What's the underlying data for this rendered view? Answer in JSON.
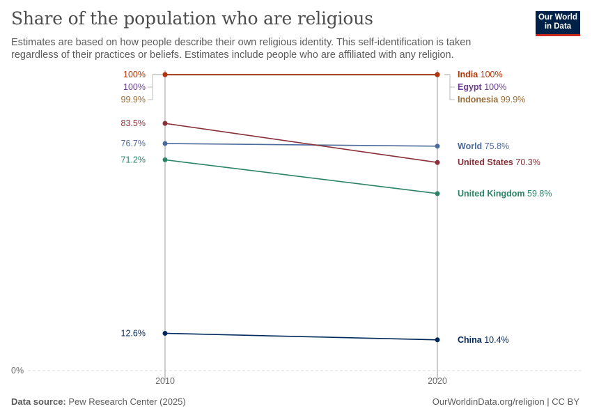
{
  "header": {
    "title": "Share of the population who are religious",
    "subtitle": "Estimates are based on how people describe their own religious identity. This self-identification is taken regardless of their practices or beliefs. Estimates include people who are affiliated with any religion."
  },
  "logo": {
    "line1": "Our World",
    "line2": "in Data"
  },
  "footer": {
    "source_label": "Data source:",
    "source_text": "Pew Research Center (2025)",
    "credit": "OurWorldinData.org/religion | CC BY"
  },
  "chart_data": {
    "type": "line",
    "x": [
      "2010",
      "2020"
    ],
    "ylim": [
      0,
      100
    ],
    "y_tick_label": "0%",
    "series": [
      {
        "name": "India",
        "values": [
          100,
          100
        ],
        "start_label": "100%",
        "end_label": "100%",
        "color": "#b13507"
      },
      {
        "name": "Egypt",
        "values": [
          100,
          100
        ],
        "start_label": "100%",
        "end_label": "100%",
        "color": "#6d3e91"
      },
      {
        "name": "Indonesia",
        "values": [
          99.9,
          99.9
        ],
        "start_label": "99.9%",
        "end_label": "99.9%",
        "color": "#996d39"
      },
      {
        "name": "United States",
        "values": [
          83.5,
          70.3
        ],
        "start_label": "83.5%",
        "end_label": "70.3%",
        "color": "#883039"
      },
      {
        "name": "World",
        "values": [
          76.7,
          75.8
        ],
        "start_label": "76.7%",
        "end_label": "75.8%",
        "color": "#4c6a9c"
      },
      {
        "name": "United Kingdom",
        "values": [
          71.2,
          59.8
        ],
        "start_label": "71.2%",
        "end_label": "59.8%",
        "color": "#2c8465"
      },
      {
        "name": "China",
        "values": [
          12.6,
          10.4
        ],
        "start_label": "12.6%",
        "end_label": "10.4%",
        "color": "#00295b"
      }
    ],
    "grid": "horizontal-zero-line",
    "legend": "right-end-labels"
  }
}
